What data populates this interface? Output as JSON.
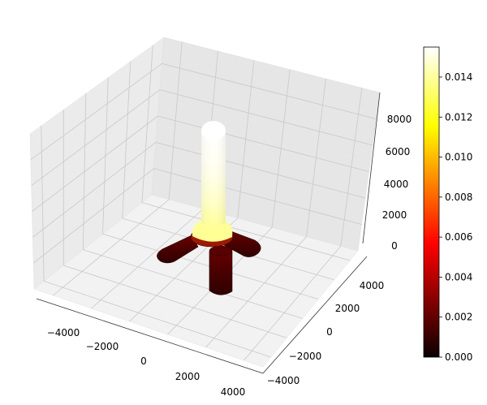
{
  "chart_data": {
    "type": "surface3d",
    "title": "",
    "xlabel": "",
    "ylabel": "",
    "zlabel": "",
    "x_ticks": [
      "−4000",
      "−2000",
      "0",
      "2000",
      "4000"
    ],
    "y_ticks": [
      "−4000",
      "−2000",
      "0",
      "2000",
      "4000"
    ],
    "z_ticks": [
      "0",
      "2000",
      "4000",
      "6000",
      "8000"
    ],
    "xlim": [
      -5000,
      5000
    ],
    "ylim": [
      -5000,
      5000
    ],
    "zlim": [
      -500,
      9500
    ],
    "grid": true,
    "colormap": "hot",
    "colorbar": {
      "range": [
        0,
        0.0155
      ],
      "ticks": [
        "0.000",
        "0.002",
        "0.004",
        "0.006",
        "0.008",
        "0.010",
        "0.012",
        "0.014"
      ],
      "tick_values": [
        0,
        0.002,
        0.004,
        0.006,
        0.008,
        0.01,
        0.012,
        0.014
      ]
    },
    "geometry": {
      "description_shape": "vertical column with three horizontal arms at base",
      "column": {
        "x": 0,
        "y": 0,
        "z_range": [
          0,
          9000
        ],
        "radius": 450
      },
      "arms": [
        {
          "name": "arm-left",
          "from": [
            0,
            0
          ],
          "to": [
            -3200,
            -300
          ]
        },
        {
          "name": "arm-right",
          "from": [
            0,
            0
          ],
          "to": [
            600,
            2800
          ]
        },
        {
          "name": "arm-front",
          "from": [
            0,
            0
          ],
          "to": [
            2800,
            -1600
          ]
        }
      ]
    }
  }
}
